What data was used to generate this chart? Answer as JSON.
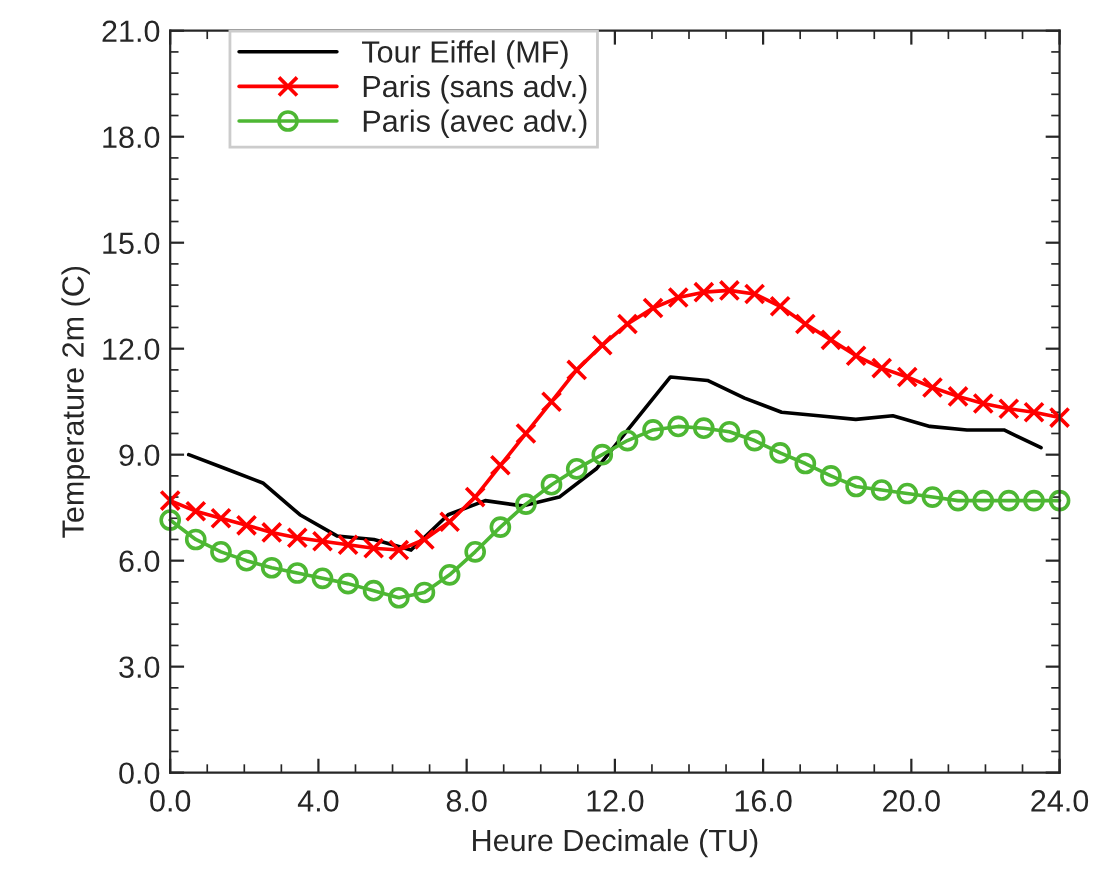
{
  "chart_data": {
    "type": "line",
    "xlabel": "Heure Decimale (TU)",
    "ylabel": "Temperature 2m (C)",
    "xlim": [
      0,
      24
    ],
    "ylim": [
      0,
      21
    ],
    "xticks": [
      {
        "value": 0,
        "label": "0.0"
      },
      {
        "value": 4,
        "label": "4.0"
      },
      {
        "value": 8,
        "label": "8.0"
      },
      {
        "value": 12,
        "label": "12.0"
      },
      {
        "value": 16,
        "label": "16.0"
      },
      {
        "value": 20,
        "label": "20.0"
      },
      {
        "value": 24,
        "label": "24.0"
      }
    ],
    "yticks": [
      {
        "value": 0,
        "label": "0.0"
      },
      {
        "value": 3,
        "label": "3.0"
      },
      {
        "value": 6,
        "label": "6.0"
      },
      {
        "value": 9,
        "label": "9.0"
      },
      {
        "value": 12,
        "label": "12.0"
      },
      {
        "value": 15,
        "label": "15.0"
      },
      {
        "value": 18,
        "label": "18.0"
      },
      {
        "value": 21,
        "label": "21.0"
      }
    ],
    "grid": false,
    "legend": "top left",
    "series": [
      {
        "name": "Tour Eiffel (MF)",
        "color": "#000000",
        "marker": "none",
        "x": [
          0.5,
          1.5,
          2.5,
          3.5,
          4.5,
          5.5,
          6.5,
          7.5,
          8.5,
          9.5,
          10.5,
          11.5,
          12.5,
          13.5,
          14.5,
          15.5,
          16.5,
          17.5,
          18.5,
          19.5,
          20.5,
          21.5,
          22.5,
          23.5
        ],
        "values": [
          9.0,
          8.6,
          8.2,
          7.3,
          6.7,
          6.6,
          6.3,
          7.3,
          7.7,
          7.55,
          7.8,
          8.6,
          9.9,
          11.2,
          11.1,
          10.6,
          10.2,
          10.1,
          10.0,
          10.1,
          9.8,
          9.7,
          9.7,
          9.2
        ]
      },
      {
        "name": "Paris (sans adv.)",
        "color": "#ff0000",
        "marker": "cross",
        "x": [
          0,
          0.69,
          1.37,
          2.06,
          2.74,
          3.43,
          4.11,
          4.8,
          5.49,
          6.17,
          6.86,
          7.54,
          8.23,
          8.91,
          9.6,
          10.29,
          10.97,
          11.66,
          12.34,
          13.03,
          13.71,
          14.4,
          15.09,
          15.77,
          16.46,
          17.14,
          17.83,
          18.51,
          19.2,
          19.89,
          20.57,
          21.26,
          21.94,
          22.63,
          23.31,
          24
        ],
        "values": [
          7.7,
          7.4,
          7.2,
          7.0,
          6.8,
          6.65,
          6.55,
          6.45,
          6.35,
          6.3,
          6.6,
          7.1,
          7.8,
          8.7,
          9.6,
          10.5,
          11.4,
          12.1,
          12.7,
          13.15,
          13.45,
          13.6,
          13.65,
          13.55,
          13.2,
          12.7,
          12.25,
          11.8,
          11.45,
          11.2,
          10.9,
          10.65,
          10.45,
          10.3,
          10.2,
          10.05
        ]
      },
      {
        "name": "Paris (avec adv.)",
        "color": "#4db733",
        "marker": "circle",
        "x": [
          0,
          0.69,
          1.37,
          2.06,
          2.74,
          3.43,
          4.11,
          4.8,
          5.49,
          6.17,
          6.86,
          7.54,
          8.23,
          8.91,
          9.6,
          10.29,
          10.97,
          11.66,
          12.34,
          13.03,
          13.71,
          14.4,
          15.09,
          15.77,
          16.46,
          17.14,
          17.83,
          18.51,
          19.2,
          19.89,
          20.57,
          21.26,
          21.94,
          22.63,
          23.31,
          24
        ],
        "values": [
          7.15,
          6.6,
          6.25,
          6.0,
          5.8,
          5.65,
          5.5,
          5.35,
          5.15,
          4.95,
          5.1,
          5.6,
          6.25,
          6.95,
          7.6,
          8.15,
          8.6,
          9.0,
          9.4,
          9.7,
          9.8,
          9.75,
          9.65,
          9.4,
          9.05,
          8.75,
          8.4,
          8.1,
          8.0,
          7.9,
          7.8,
          7.7,
          7.7,
          7.7,
          7.7,
          7.7
        ]
      }
    ]
  }
}
